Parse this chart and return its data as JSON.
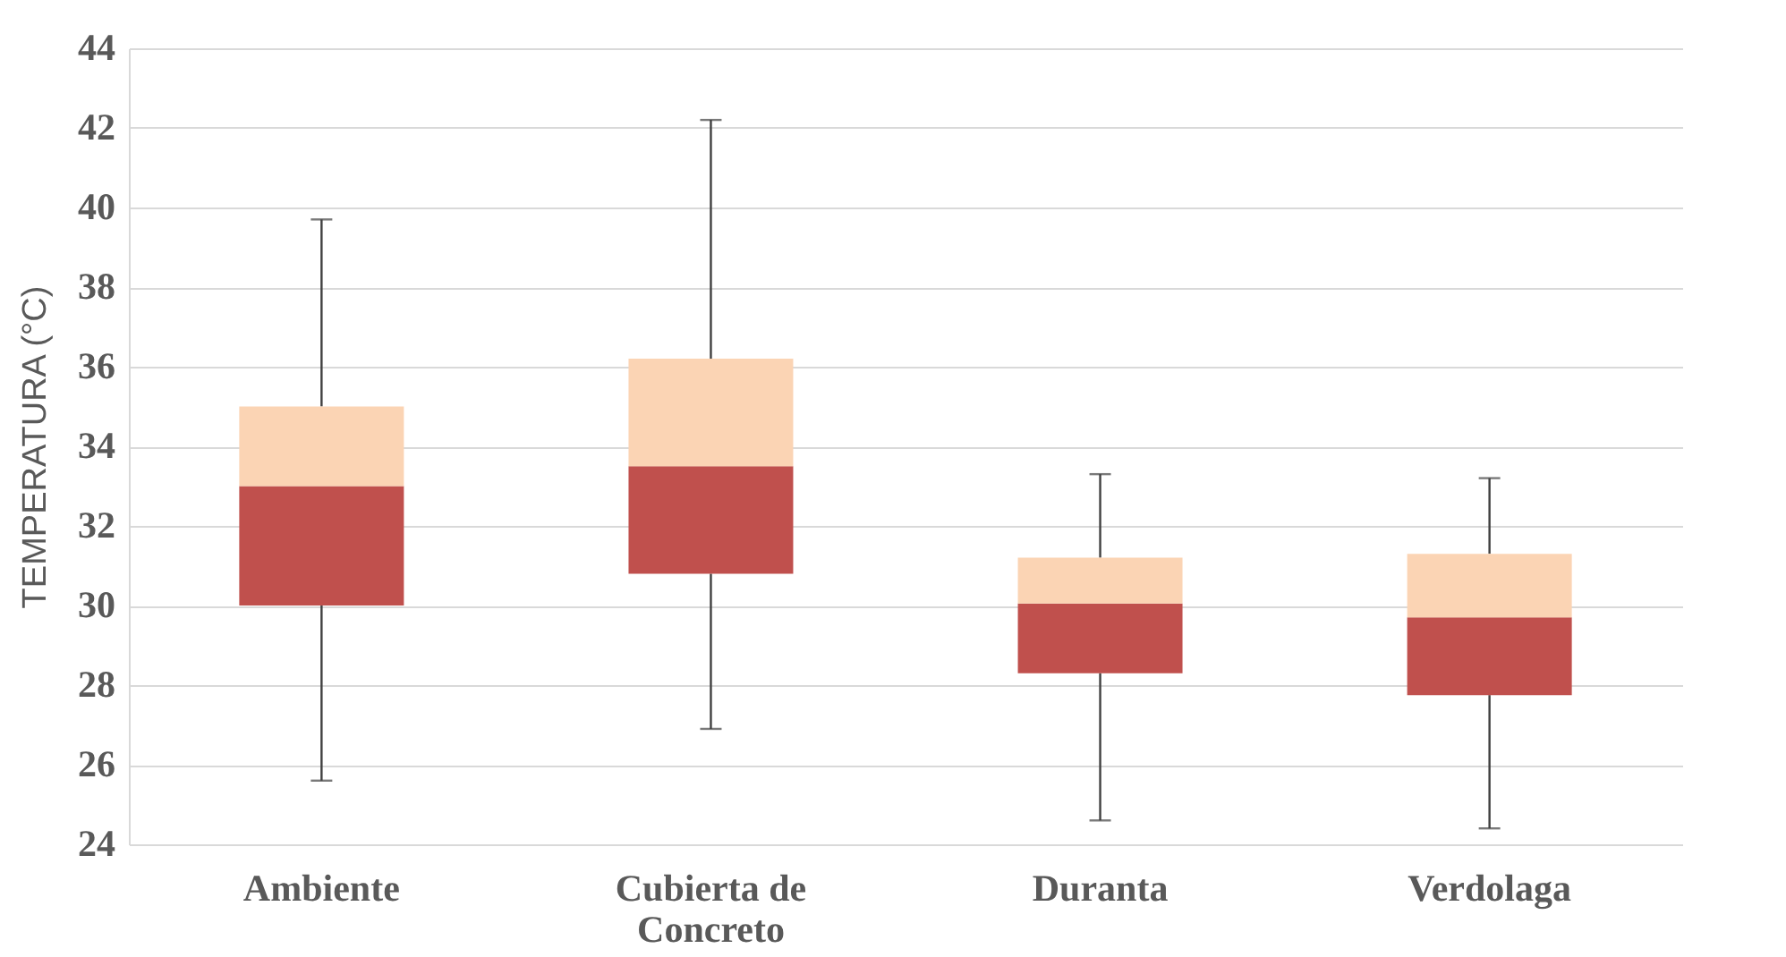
{
  "chart_data": {
    "type": "box",
    "ylabel": "TEMPERATURA (°C)",
    "categories": [
      "Ambiente",
      "Cubierta de Concreto",
      "Duranta",
      "Verdolaga"
    ],
    "series": [
      {
        "color": "#fbd4b4",
        "colors": [
          "#c0504d",
          "#c0504d",
          "#c0504d",
          "#c0504d"
        ],
        "boxes": [
          {
            "low": 25.6,
            "q1": 30.0,
            "median": 33.0,
            "q3": 35.0,
            "high": 39.7
          },
          {
            "low": 26.9,
            "q1": 30.8,
            "median": 33.5,
            "q3": 36.2,
            "high": 42.2
          },
          {
            "low": 24.6,
            "q1": 28.3,
            "median": 30.05,
            "q3": 31.2,
            "high": 33.3
          },
          {
            "low": 24.4,
            "q1": 27.75,
            "median": 29.7,
            "q3": 31.3,
            "high": 33.2
          }
        ]
      }
    ],
    "ylim": [
      24,
      44
    ],
    "yticks": [
      24,
      26,
      28,
      30,
      32,
      34,
      36,
      38,
      40,
      42,
      44
    ],
    "grid": "y"
  }
}
